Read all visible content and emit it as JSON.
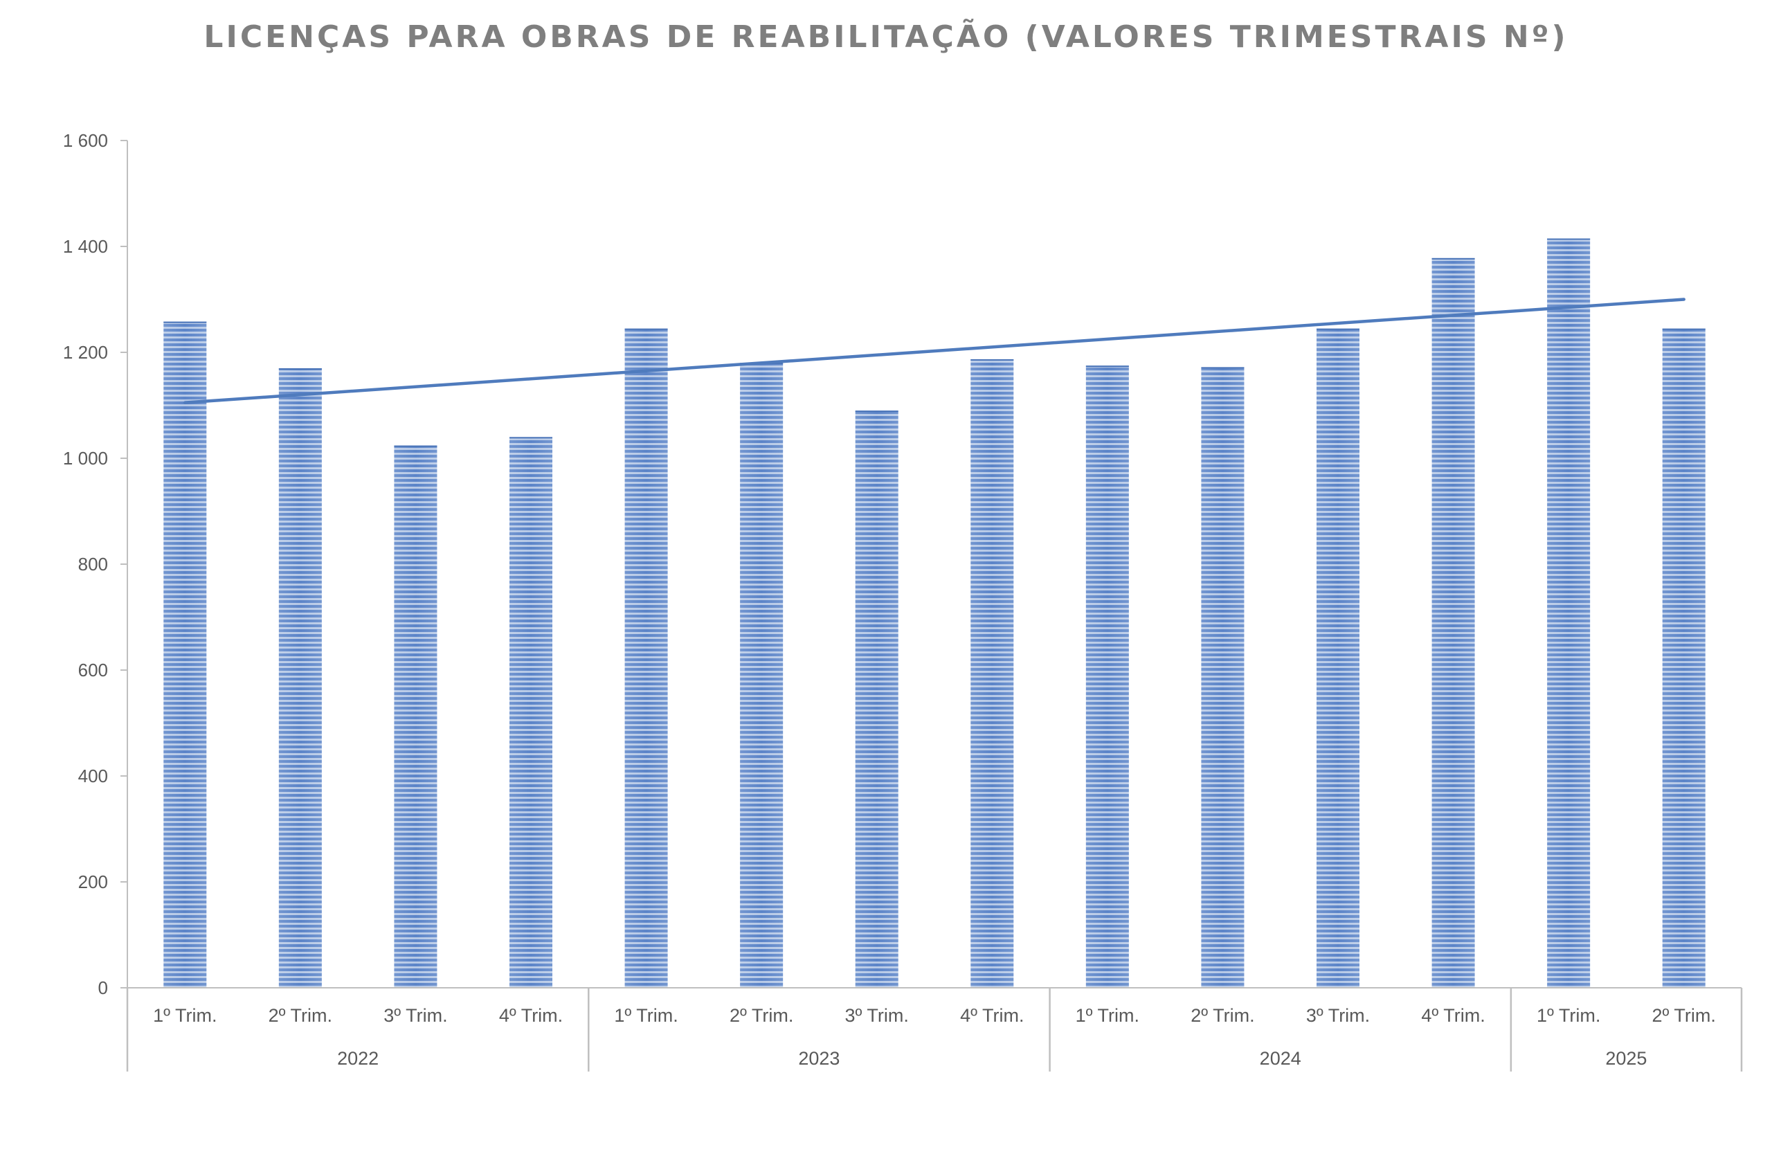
{
  "chart_data": {
    "type": "bar",
    "title": "LICENÇAS PARA OBRAS DE REABILITAÇÃO (VALORES TRIMESTRAIS Nº)",
    "xlabel": "",
    "ylabel": "",
    "ylim": [
      0,
      1600
    ],
    "yticks": [
      0,
      200,
      400,
      600,
      800,
      1000,
      1200,
      1400,
      1600
    ],
    "ytick_labels": [
      "0",
      "200",
      "400",
      "600",
      "800",
      "1 000",
      "1 200",
      "1 400",
      "1 600"
    ],
    "categories": [
      "1º Trim.",
      "2º Trim.",
      "3º Trim.",
      "4º Trim.",
      "1º Trim.",
      "2º Trim.",
      "3º Trim.",
      "4º Trim.",
      "1º Trim.",
      "2º Trim.",
      "3º Trim.",
      "4º Trim.",
      "1º Trim.",
      "2º Trim."
    ],
    "groups": [
      {
        "label": "2022",
        "count": 4
      },
      {
        "label": "2023",
        "count": 4
      },
      {
        "label": "2024",
        "count": 4
      },
      {
        "label": "2025",
        "count": 2
      }
    ],
    "values": [
      1258,
      1170,
      1024,
      1040,
      1245,
      1180,
      1090,
      1187,
      1175,
      1172,
      1245,
      1378,
      1415,
      1245
    ],
    "trendline": {
      "type": "linear",
      "start": 1105,
      "end": 1300
    },
    "grid": false,
    "legend": "none",
    "colors": {
      "bar": "#6a8fcf",
      "bar_stripe": "#ffffff",
      "trend": "#4f7bbd",
      "axis": "#bfbfbf",
      "text": "#595959",
      "title": "#7f7f7f"
    }
  }
}
